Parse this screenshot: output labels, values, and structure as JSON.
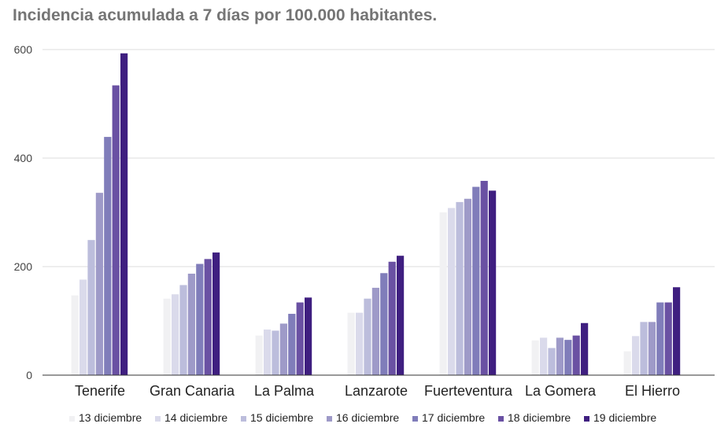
{
  "chart_data": {
    "type": "bar",
    "title": "Incidencia acumulada a 7 días por 100.000 habitantes.",
    "xlabel": "",
    "ylabel": "",
    "ylim": [
      0,
      600
    ],
    "yticks": [
      "0",
      "200",
      "400",
      "600"
    ],
    "grid": true,
    "legend_position": "bottom",
    "categories": [
      "Tenerife",
      "Gran Canaria",
      "La Palma",
      "Lanzarote",
      "Fuerteventura",
      "La Gomera",
      "El Hierro"
    ],
    "series": [
      {
        "name": "13 diciembre",
        "color": "#f1f1f3",
        "values": [
          147,
          141,
          73,
          115,
          300,
          64,
          44
        ]
      },
      {
        "name": "14 diciembre",
        "color": "#dadaeb",
        "values": [
          176,
          149,
          84,
          115,
          308,
          69,
          72
        ]
      },
      {
        "name": "15 diciembre",
        "color": "#bcbddc",
        "values": [
          249,
          166,
          82,
          141,
          319,
          50,
          98
        ]
      },
      {
        "name": "16 diciembre",
        "color": "#9e9ac8",
        "values": [
          336,
          187,
          95,
          161,
          325,
          69,
          98
        ]
      },
      {
        "name": "17 diciembre",
        "color": "#807dba",
        "values": [
          439,
          205,
          113,
          188,
          347,
          65,
          134
        ]
      },
      {
        "name": "18 diciembre",
        "color": "#6a51a3",
        "values": [
          534,
          214,
          134,
          209,
          358,
          73,
          134
        ]
      },
      {
        "name": "19 diciembre",
        "color": "#3f1f80",
        "values": [
          593,
          226,
          143,
          220,
          340,
          96,
          162
        ]
      }
    ]
  }
}
